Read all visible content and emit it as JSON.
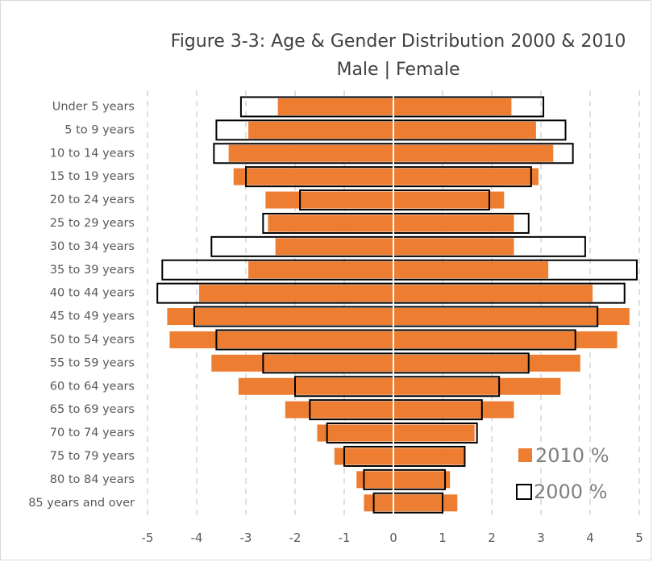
{
  "chart_data": {
    "type": "bar",
    "orientation": "horizontal",
    "style": "population pyramid",
    "title": "Figure 3-3:  Age & Gender Distribution 2000 & 2010",
    "subtitle": "Male | Female",
    "categories": [
      "Under 5 years",
      "5 to 9 years",
      "10 to 14 years",
      "15 to 19 years",
      "20 to 24 years",
      "25 to 29 years",
      "30 to 34 years",
      "35 to 39 years",
      "40 to 44 years",
      "45 to 49 years",
      "50 to 54 years",
      "55 to 59 years",
      "60 to 64 years",
      "65 to 69 years",
      "70 to 74 years",
      "75 to 79 years",
      "80 to 84 years",
      "85 years and over"
    ],
    "series": [
      {
        "name": "2010 %",
        "style": "filled",
        "color": "#ed7d31",
        "male": [
          -2.35,
          -2.95,
          -3.35,
          -3.25,
          -2.6,
          -2.55,
          -2.4,
          -2.95,
          -3.95,
          -4.6,
          -4.55,
          -3.7,
          -3.15,
          -2.2,
          -1.55,
          -1.2,
          -0.75,
          -0.6
        ],
        "female": [
          2.4,
          2.9,
          3.25,
          2.95,
          2.25,
          2.45,
          2.45,
          3.15,
          4.05,
          4.8,
          4.55,
          3.8,
          3.4,
          2.45,
          1.65,
          1.45,
          1.15,
          1.3
        ]
      },
      {
        "name": "2000 %",
        "style": "outline",
        "color": "#000000",
        "male": [
          -3.1,
          -3.6,
          -3.65,
          -3.0,
          -1.9,
          -2.65,
          -3.7,
          -4.7,
          -4.8,
          -4.05,
          -3.6,
          -2.65,
          -2.0,
          -1.7,
          -1.35,
          -1.0,
          -0.6,
          -0.4
        ],
        "female": [
          3.05,
          3.5,
          3.65,
          2.8,
          1.95,
          2.75,
          3.9,
          4.95,
          4.7,
          4.15,
          3.7,
          2.75,
          2.15,
          1.8,
          1.7,
          1.45,
          1.05,
          1.0
        ]
      }
    ],
    "x_ticks": [
      "-5",
      "-4",
      "-3",
      "-2",
      "-1",
      "0",
      "1",
      "2",
      "3",
      "4",
      "5"
    ],
    "xlim": [
      -5,
      5
    ],
    "grid": "vertical dashed",
    "legend": "bottom-right inside plot"
  }
}
